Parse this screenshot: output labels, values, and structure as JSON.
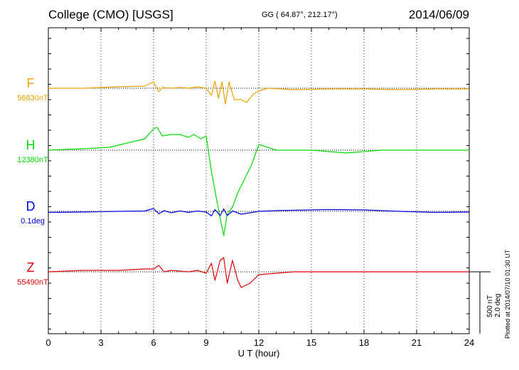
{
  "header": {
    "title": "College (CMO)  [USGS]",
    "coordinates": "GG ( 64.87°, 212.17°)",
    "date": "2014/06/09"
  },
  "plotted_note": "Plotted at 2014/07/10 01:30 UT",
  "scale_bar": {
    "label1": "500 nT",
    "label2": "2.0 deg"
  },
  "colors": {
    "F": "#f0a000",
    "H": "#00dc00",
    "D": "#0000e0",
    "Z": "#e00000"
  },
  "chart_data": {
    "type": "line",
    "title": "College (CMO)  [USGS]",
    "xlabel": "U T (hour)",
    "ylabel": "",
    "xlim": [
      0,
      24
    ],
    "x_ticks": [
      0,
      3,
      6,
      9,
      12,
      15,
      18,
      21,
      24
    ],
    "grid": true,
    "series": [
      {
        "name": "F",
        "baseline_label": "56830nT",
        "x": [
          0,
          2,
          4,
          5.5,
          6.0,
          6.3,
          6.5,
          7.0,
          7.5,
          8.0,
          8.5,
          9.0,
          9.3,
          9.5,
          9.7,
          9.9,
          10.1,
          10.3,
          10.6,
          11.0,
          11.3,
          11.7,
          12.0,
          12.5,
          14,
          16,
          18,
          20,
          22,
          24
        ],
        "values": [
          0,
          0,
          10,
          15,
          45,
          -25,
          5,
          0,
          5,
          0,
          10,
          0,
          -50,
          50,
          -70,
          45,
          -110,
          45,
          -80,
          -80,
          -100,
          -40,
          -20,
          0,
          -10,
          -5,
          -5,
          -10,
          -5,
          -5
        ]
      },
      {
        "name": "H",
        "baseline_label": "12380nT",
        "x": [
          0,
          2,
          3.5,
          4.5,
          5.5,
          6.0,
          6.2,
          6.5,
          7.0,
          7.5,
          8.0,
          8.3,
          8.7,
          9.0,
          9.3,
          9.6,
          9.8,
          10.0,
          10.2,
          10.5,
          10.8,
          11.2,
          11.6,
          12.0,
          13,
          15,
          17,
          19,
          21,
          24
        ],
        "values": [
          0,
          10,
          20,
          50,
          80,
          150,
          160,
          100,
          110,
          110,
          90,
          110,
          80,
          100,
          -150,
          -350,
          -480,
          -600,
          -450,
          -400,
          -300,
          -200,
          -100,
          40,
          0,
          0,
          -20,
          0,
          0,
          0
        ]
      },
      {
        "name": "D",
        "baseline_label": "0.1deg",
        "x": [
          0,
          2,
          4,
          5.5,
          6.0,
          6.3,
          6.6,
          7.0,
          7.5,
          8.0,
          8.5,
          9.0,
          9.3,
          9.5,
          9.8,
          10.0,
          10.2,
          10.5,
          11.0,
          11.5,
          12.0,
          13,
          14,
          16,
          18,
          20,
          22,
          24
        ],
        "values": [
          -0.03,
          -0.02,
          0.0,
          0.01,
          0.08,
          -0.07,
          0.02,
          -0.04,
          0.01,
          -0.03,
          0.01,
          -0.02,
          -0.13,
          0.05,
          -0.12,
          0.07,
          -0.12,
          0.01,
          -0.08,
          -0.04,
          0.0,
          0.02,
          0.03,
          0.05,
          0.04,
          0.0,
          -0.03,
          -0.02
        ]
      },
      {
        "name": "Z",
        "baseline_label": "55490nT",
        "x": [
          0,
          2,
          4,
          5.5,
          6.0,
          6.3,
          6.6,
          7.0,
          8.0,
          8.5,
          9.0,
          9.3,
          9.5,
          9.8,
          10.0,
          10.2,
          10.5,
          10.8,
          11.0,
          11.5,
          12.0,
          14,
          16,
          18,
          20,
          22,
          24
        ],
        "values": [
          0,
          10,
          10,
          20,
          20,
          45,
          0,
          10,
          0,
          10,
          -10,
          60,
          -60,
          80,
          100,
          -80,
          80,
          -60,
          -110,
          -80,
          -20,
          0,
          0,
          0,
          0,
          0,
          0
        ]
      }
    ]
  }
}
